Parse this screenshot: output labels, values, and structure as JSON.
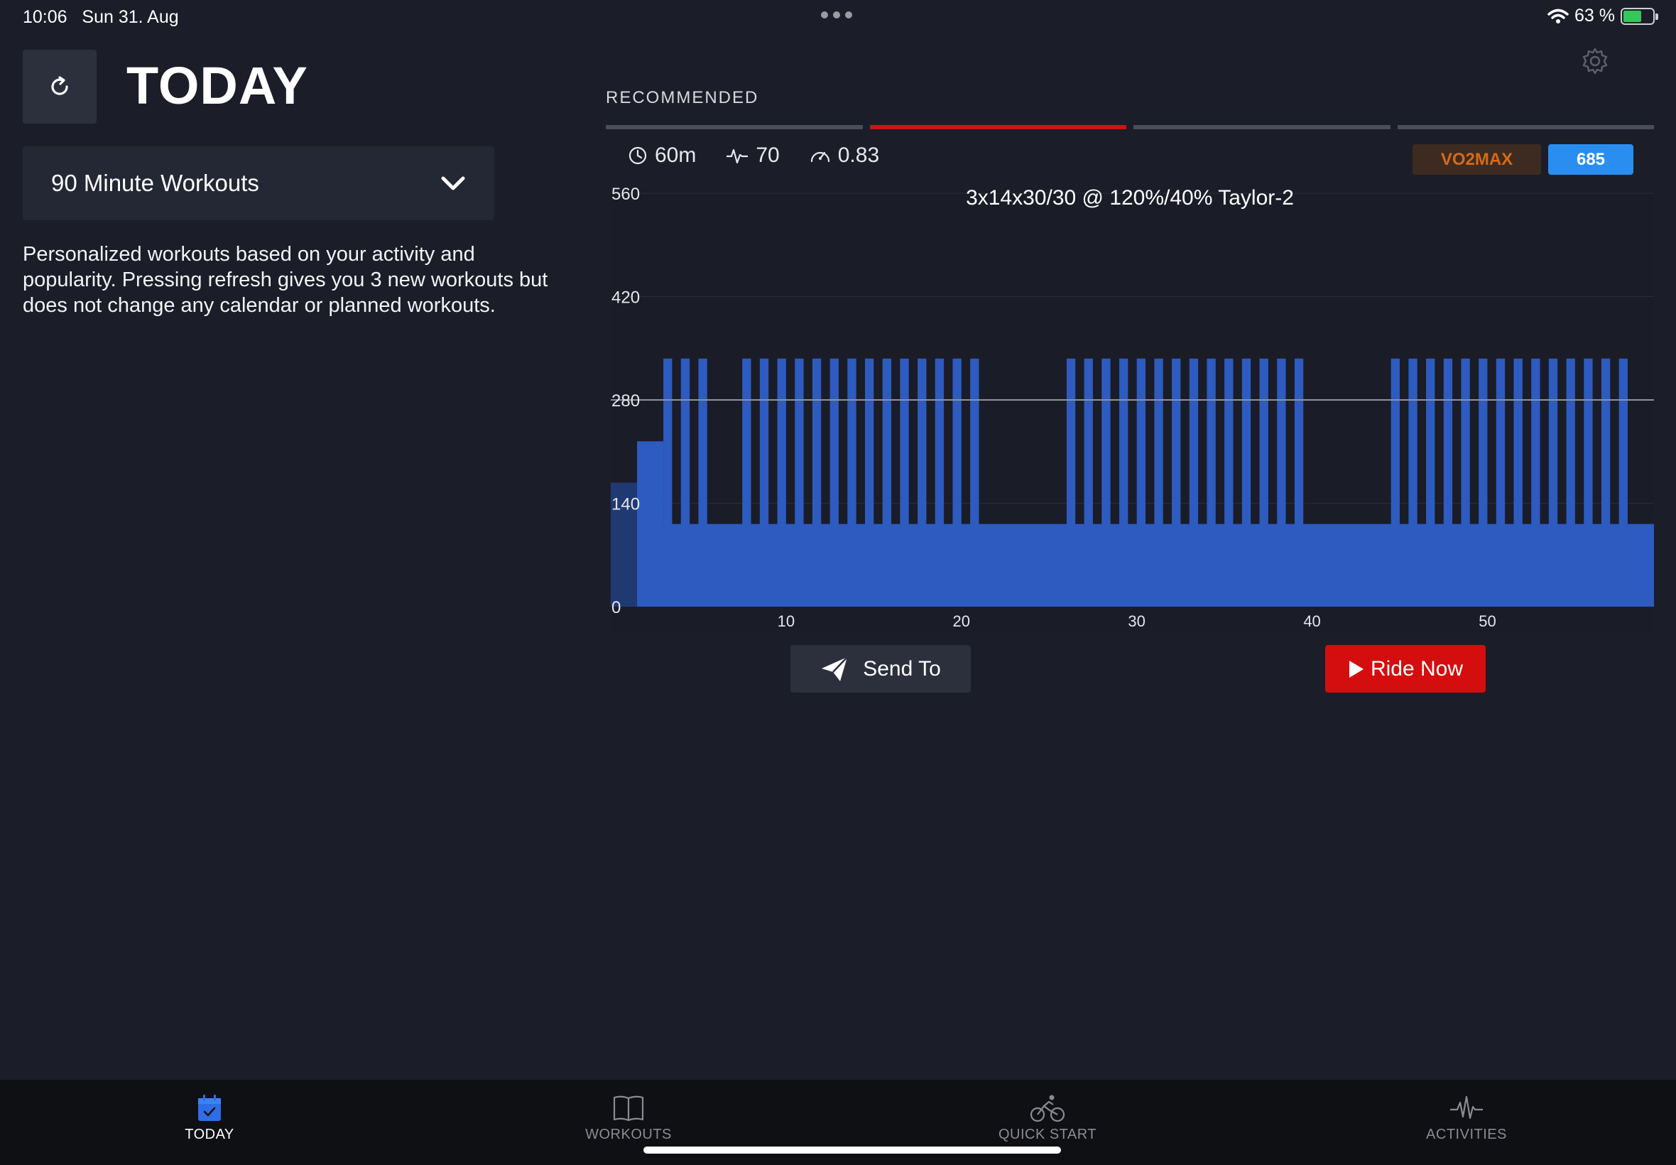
{
  "status": {
    "time": "10:06",
    "date": "Sun 31. Aug",
    "battery": "63 %",
    "battery_level": 0.63
  },
  "header": {
    "title": "TODAY"
  },
  "dropdown": {
    "selected": "90 Minute Workouts"
  },
  "description": "Personalized workouts based on your activity and popularity. Pressing refresh gives you 3 new workouts but does not change any calendar or planned workouts.",
  "recommended": {
    "label": "RECOMMENDED",
    "active_index": 1,
    "count": 4
  },
  "workout": {
    "duration": "60m",
    "tss": "70",
    "intensity": "0.83",
    "zone": "VO2MAX",
    "score": "685",
    "title": "3x14x30/30 @ 120%/40% Taylor-2"
  },
  "actions": {
    "send": "Send To",
    "ride": "Ride Now"
  },
  "tabs": [
    {
      "label": "TODAY",
      "icon": "calendar-icon",
      "active": true
    },
    {
      "label": "WORKOUTS",
      "icon": "book-icon",
      "active": false
    },
    {
      "label": "QUICK START",
      "icon": "cyclist-icon",
      "active": false
    },
    {
      "label": "ACTIVITIES",
      "icon": "pulse-icon",
      "active": false
    }
  ],
  "colors": {
    "accent": "#c81515",
    "bar": "#2d5bbf",
    "bar_dark": "#1f3a73",
    "badge_zone": "#d66a17",
    "badge_score": "#2a8ef0"
  },
  "chart_data": {
    "type": "area",
    "title": "3x14x30/30 @ 120%/40% Taylor-2",
    "xlabel": "",
    "ylabel": "",
    "xlim": [
      0,
      59.5
    ],
    "ylim": [
      0,
      560
    ],
    "yticks": [
      0,
      140,
      280,
      420,
      560
    ],
    "xticks": [
      10,
      20,
      30,
      40,
      50
    ],
    "grid": true,
    "ftp_line": 280,
    "warmup": [
      {
        "start": 0,
        "end": 1.5,
        "value": 168,
        "shade": "dark"
      },
      {
        "start": 1.5,
        "end": 3,
        "value": 224
      }
    ],
    "recovery_value": 112,
    "interval_value": 336,
    "sets": [
      {
        "start": 3,
        "reps": 3
      },
      {
        "start": 7.5,
        "reps": 14
      },
      {
        "start": 26,
        "reps": 14
      },
      {
        "start": 44.5,
        "reps": 14
      }
    ],
    "end": 59.5
  }
}
